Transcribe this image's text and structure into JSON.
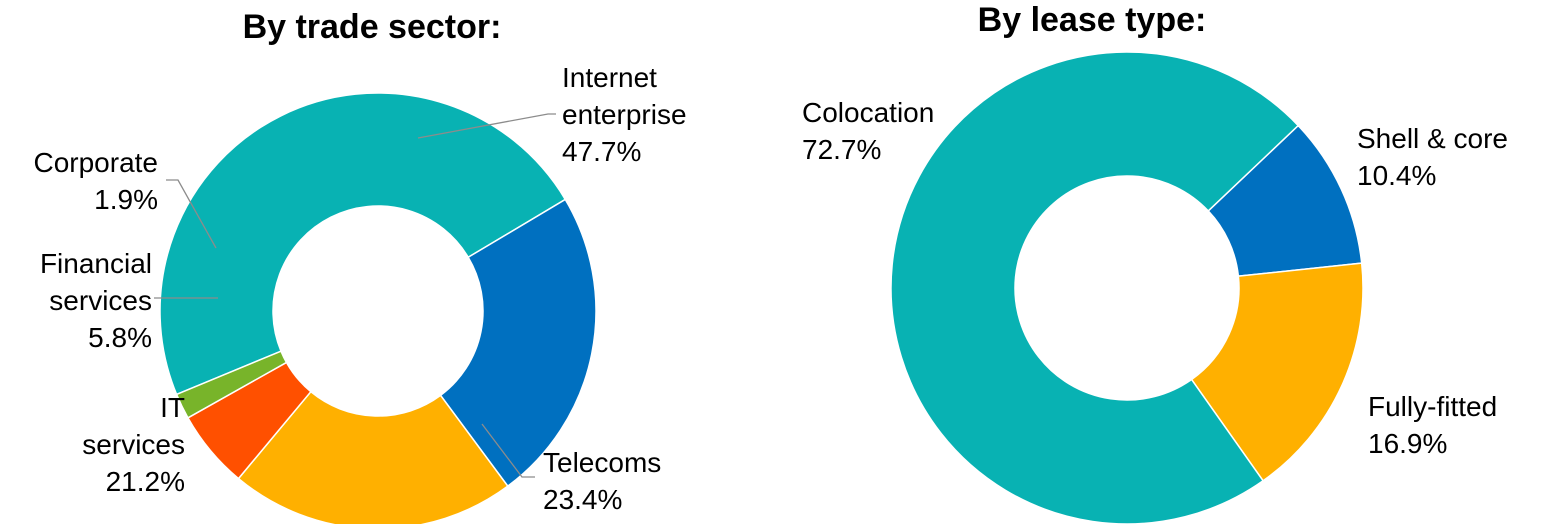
{
  "chart_data": [
    {
      "type": "pie",
      "donut": true,
      "title": "By trade sector:",
      "slices": [
        {
          "name": "Internet enterprise",
          "lines": [
            "Internet",
            "enterprise"
          ],
          "value": 47.7,
          "label": "47.7%",
          "color": "#08B2B3"
        },
        {
          "name": "Telecoms",
          "lines": [
            "Telecoms"
          ],
          "value": 23.4,
          "label": "23.4%",
          "color": "#0070C0"
        },
        {
          "name": "IT services",
          "lines": [
            "IT",
            "services"
          ],
          "value": 21.2,
          "label": "21.2%",
          "color": "#FFB000"
        },
        {
          "name": "Financial services",
          "lines": [
            "Financial",
            "services"
          ],
          "value": 5.8,
          "label": "5.8%",
          "color": "#FF5000"
        },
        {
          "name": "Corporate",
          "lines": [
            "Corporate"
          ],
          "value": 1.9,
          "label": "1.9%",
          "color": "#78B42A"
        }
      ]
    },
    {
      "type": "pie",
      "donut": true,
      "title": "By lease type:",
      "slices": [
        {
          "name": "Shell & core",
          "lines": [
            "Shell & core"
          ],
          "value": 10.4,
          "label": "10.4%",
          "color": "#0070C0"
        },
        {
          "name": "Fully-fitted",
          "lines": [
            "Fully-fitted"
          ],
          "value": 16.9,
          "label": "16.9%",
          "color": "#FFB000"
        },
        {
          "name": "Colocation",
          "lines": [
            "Colocation"
          ],
          "value": 72.7,
          "label": "72.7%",
          "color": "#08B2B3"
        }
      ]
    }
  ]
}
